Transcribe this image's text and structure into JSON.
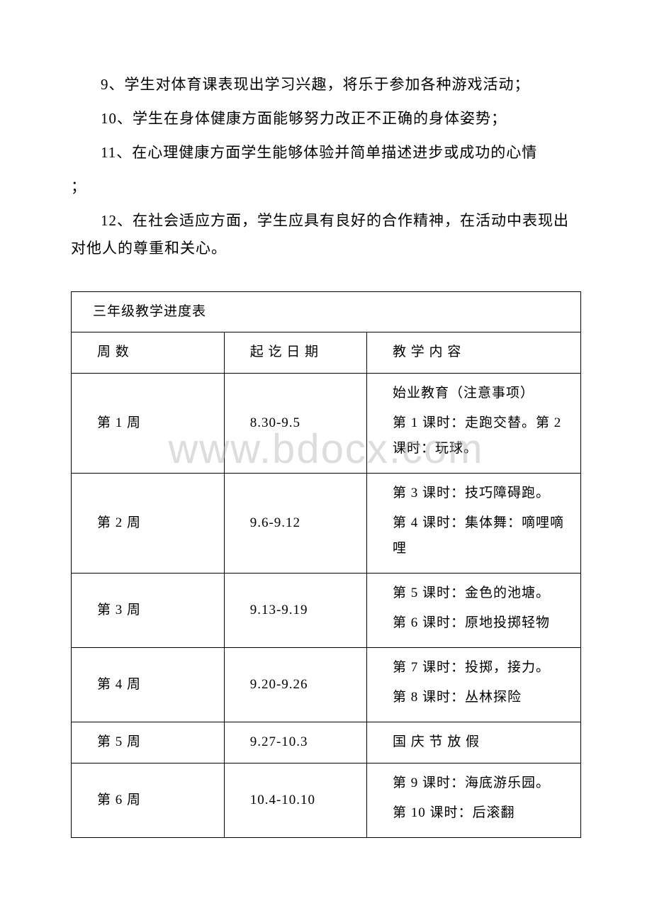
{
  "paragraphs": {
    "p9": "9、学生对体育课表现出学习兴趣，将乐于参加各种游戏活动；",
    "p10": "10、学生在身体健康方面能够努力改正不正确的身体姿势；",
    "p11a": "11、在心理健康方面学生能够体验并简单描述进步或成功的心情",
    "p11b": "；",
    "p12": "12、在社会适应方面，学生应具有良好的合作精神，在活动中表现出对他人的尊重和关心。"
  },
  "table": {
    "title": "三年级教学进度表",
    "headers": {
      "col1": "周 数",
      "col2": "起 讫 日 期",
      "col3": "教 学 内 容"
    },
    "rows": [
      {
        "week": "第 1 周",
        "dates": "8.30-9.5",
        "content1": "始业教育（注意事项）",
        "content2": "第 1 课时：走跑交替。第 2 课时：玩球。"
      },
      {
        "week": "第 2 周",
        "dates": "9.6-9.12",
        "content1": "第 3 课时：技巧障碍跑。",
        "content2": "第 4 课时：集体舞：嘀哩嘀哩"
      },
      {
        "week": "第 3 周",
        "dates": "9.13-9.19",
        "content1": "第 5 课时：金色的池塘。",
        "content2": "第 6 课时：原地投掷轻物"
      },
      {
        "week": "第 4 周",
        "dates": "9.20-9.26",
        "content1": "第 7 课时：投掷，接力。",
        "content2": "第 8 课时：丛林探险"
      },
      {
        "week": "第 5 周",
        "dates": "9.27-10.3",
        "content_single": "国 庆 节 放 假"
      },
      {
        "week": "第 6 周",
        "dates": "10.4-10.10",
        "content1": "第 9 课时：海底游乐园。",
        "content2": "第 10 课时：后滚翻"
      }
    ]
  },
  "watermark": "www.bdocx.com",
  "colors": {
    "text": "#000000",
    "background": "#ffffff",
    "border": "#000000",
    "watermark": "rgba(180,180,180,0.45)"
  },
  "typography": {
    "body_fontsize": 21,
    "table_fontsize": 19,
    "watermark_fontsize": 58,
    "font_family": "SimSun"
  }
}
